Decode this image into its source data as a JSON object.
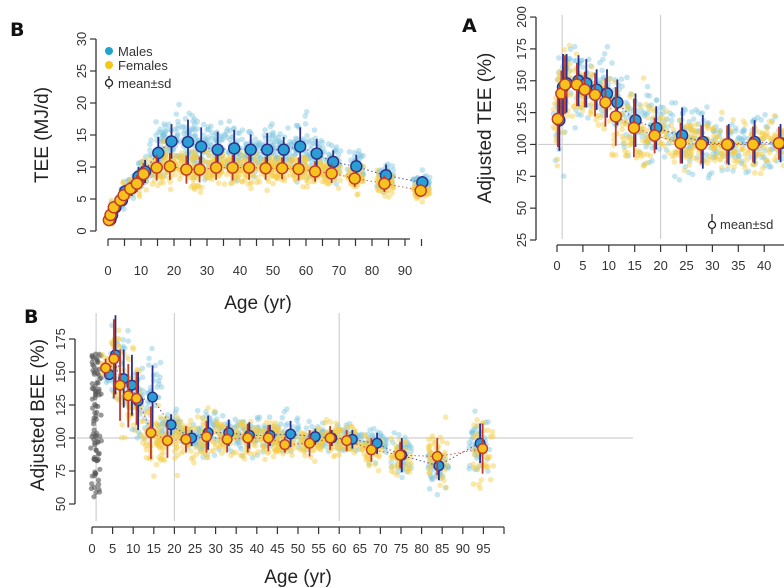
{
  "colors": {
    "male": "#2a9fd6",
    "male_edge": "#2b2f8a",
    "female": "#f6c21c",
    "female_edge": "#c0392b",
    "male_scatter": "#7fc6e0",
    "female_scatter": "#f3cd45",
    "neonate_scatter": "#555555",
    "grid": "#d0d0d0"
  },
  "chart_data": [
    {
      "type": "scatter",
      "panel_label": "B",
      "xlabel": "Age (yr)",
      "ylabel": "TEE (MJ/d)",
      "xlim": [
        0,
        95
      ],
      "ylim": [
        0,
        30
      ],
      "xticks": [
        0,
        10,
        20,
        30,
        40,
        50,
        60,
        70,
        80,
        90
      ],
      "yticks": [
        0,
        5,
        10,
        15,
        20,
        25,
        30
      ],
      "legend": {
        "position": "top-left",
        "entries": [
          "Males",
          "Females",
          "mean±sd"
        ]
      },
      "series": [
        {
          "name": "Males",
          "x": [
            0.5,
            1,
            2,
            4,
            5,
            7,
            9,
            11,
            15,
            19,
            24,
            28,
            33,
            38,
            43,
            48,
            53,
            58,
            63,
            68,
            75,
            84,
            95
          ],
          "mean": [
            1.8,
            2.5,
            3.7,
            4.8,
            6.2,
            6.7,
            8.5,
            9.3,
            12.2,
            14.0,
            13.9,
            13.2,
            12.7,
            12.9,
            12.7,
            12.7,
            12.7,
            13.2,
            12.1,
            10.8,
            10.1,
            8.7,
            7.6
          ],
          "sd": [
            0.5,
            0.6,
            0.7,
            0.8,
            1.0,
            1.2,
            1.5,
            1.8,
            2.5,
            2.7,
            3.5,
            3.0,
            2.8,
            2.9,
            2.4,
            2.6,
            2.0,
            3.0,
            2.3,
            1.8,
            1.8,
            1.7,
            1.0
          ]
        },
        {
          "name": "Females",
          "x": [
            0.5,
            1,
            2,
            4,
            5,
            7,
            9,
            11,
            15,
            19,
            24,
            28,
            33,
            38,
            43,
            48,
            53,
            58,
            63,
            68,
            75,
            84,
            95
          ],
          "mean": [
            1.7,
            2.5,
            3.7,
            4.8,
            5.6,
            6.6,
            7.4,
            8.9,
            9.9,
            10.1,
            9.6,
            9.6,
            9.9,
            9.9,
            9.9,
            9.8,
            9.8,
            9.7,
            9.3,
            9.0,
            8.2,
            7.4,
            6.3
          ],
          "sd": [
            0.4,
            0.5,
            0.6,
            0.7,
            0.9,
            1.1,
            1.3,
            1.7,
            2.0,
            2.1,
            2.2,
            2.0,
            1.9,
            2.0,
            1.9,
            1.8,
            1.7,
            1.8,
            1.6,
            1.5,
            1.3,
            1.3,
            1.0
          ]
        }
      ]
    },
    {
      "type": "scatter",
      "panel_label": "A",
      "ylabel": "Adjusted TEE (%)",
      "xlim": [
        0,
        45
      ],
      "ylim": [
        25,
        200
      ],
      "xticks": [
        0,
        5,
        10,
        15,
        20,
        25,
        30,
        35,
        40
      ],
      "yticks": [
        25,
        50,
        75,
        100,
        125,
        150,
        175,
        200
      ],
      "reference_lines": {
        "x": [
          1,
          20
        ],
        "y": [
          100
        ]
      },
      "legend": {
        "position": "bottom-right",
        "entries": [
          "mean±sd"
        ]
      },
      "series": [
        {
          "name": "Males",
          "x": [
            0.3,
            1,
            1.7,
            4,
            5.5,
            7.5,
            9.5,
            11.5,
            15,
            19,
            24,
            28,
            33,
            38,
            43
          ],
          "mean": [
            119,
            145,
            148,
            150,
            148,
            143,
            140,
            133,
            119,
            113,
            107,
            102,
            100,
            102,
            101
          ],
          "sd": [
            24,
            26,
            23,
            20,
            19,
            16,
            19,
            18,
            21,
            17,
            22,
            21,
            16,
            17,
            15
          ]
        },
        {
          "name": "Females",
          "x": [
            0.3,
            1,
            1.7,
            4,
            5.5,
            7.5,
            9.5,
            11.5,
            15,
            19,
            24,
            28,
            33,
            38,
            43
          ],
          "mean": [
            120,
            140,
            147,
            147,
            143,
            139,
            133,
            122,
            113,
            107,
            101,
            100,
            100,
            100,
            101
          ],
          "sd": [
            22,
            18,
            23,
            17,
            14,
            17,
            19,
            23,
            23,
            14,
            16,
            15,
            15,
            14,
            13
          ]
        }
      ]
    },
    {
      "type": "scatter",
      "panel_label": "B",
      "xlabel": "Age (yr)",
      "ylabel": "Adjusted BEE (%)",
      "xlim": [
        0,
        100
      ],
      "ylim": [
        35,
        190
      ],
      "xticks": [
        0,
        5,
        10,
        15,
        20,
        25,
        30,
        35,
        40,
        45,
        50,
        55,
        60,
        65,
        70,
        75,
        80,
        85,
        90,
        95
      ],
      "yticks": [
        50,
        75,
        100,
        125,
        150,
        175
      ],
      "reference_lines": {
        "x": [
          1,
          20,
          60
        ],
        "y": [
          100
        ]
      },
      "series": [
        {
          "name": "Males",
          "x": [
            4,
            5.5,
            7.5,
            9.5,
            11,
            14.5,
            19,
            24,
            28,
            33,
            38,
            43,
            48,
            54,
            58,
            63,
            69,
            75,
            84,
            94
          ],
          "mean": [
            148,
            163,
            145,
            140,
            128,
            131,
            110,
            100,
            104,
            104,
            102,
            102,
            103,
            101,
            100,
            99,
            96,
            87,
            79,
            96
          ],
          "sd": [
            4,
            30,
            22,
            23,
            22,
            24,
            8,
            6,
            13,
            10,
            10,
            8,
            10,
            6,
            6,
            7,
            8,
            13,
            11,
            15
          ]
        },
        {
          "name": "Females",
          "x": [
            3.5,
            5.5,
            7,
            9,
            11,
            14.5,
            18.5,
            23,
            28,
            33,
            38,
            43,
            47,
            53,
            58,
            62,
            68,
            75,
            84,
            95
          ],
          "mean": [
            153,
            160,
            140,
            132,
            130,
            104,
            98,
            99,
            101,
            99,
            100,
            100,
            95,
            96,
            100,
            98,
            91,
            87,
            86,
            92
          ],
          "sd": [
            7,
            30,
            27,
            24,
            20,
            20,
            13,
            10,
            12,
            10,
            11,
            10,
            6,
            10,
            9,
            8,
            9,
            10,
            14,
            19
          ]
        }
      ]
    }
  ]
}
